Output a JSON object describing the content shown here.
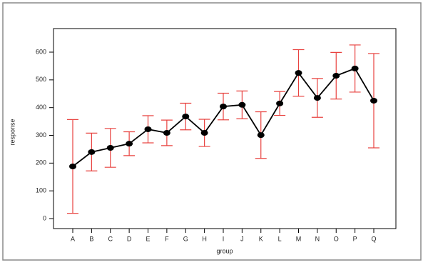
{
  "chart_data": {
    "type": "line",
    "x_label": "group",
    "y_label": "response",
    "categories": [
      "A",
      "B",
      "C",
      "D",
      "E",
      "F",
      "G",
      "H",
      "I",
      "J",
      "K",
      "L",
      "M",
      "N",
      "O",
      "P",
      "Q"
    ],
    "values": [
      188,
      240,
      255,
      270,
      322,
      309,
      368,
      309,
      404,
      410,
      301,
      415,
      525,
      435,
      515,
      541,
      425
    ],
    "errors": [
      169,
      68,
      70,
      43,
      49,
      46,
      48,
      49,
      48,
      50,
      84,
      43,
      84,
      70,
      84,
      85,
      170
    ],
    "color": "#000000",
    "error_color": "#e8423f",
    "ylim": [
      -36,
      685
    ],
    "yticks": [
      0,
      100,
      200,
      300,
      400,
      500,
      600
    ],
    "grid": false
  }
}
